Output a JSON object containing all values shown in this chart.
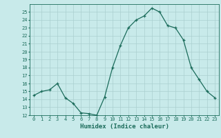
{
  "x": [
    0,
    1,
    2,
    3,
    4,
    5,
    6,
    7,
    8,
    9,
    10,
    11,
    12,
    13,
    14,
    15,
    16,
    17,
    18,
    19,
    20,
    21,
    22,
    23
  ],
  "y": [
    14.5,
    15.0,
    15.2,
    16.0,
    14.2,
    13.5,
    12.3,
    12.2,
    12.0,
    14.3,
    18.0,
    20.8,
    23.0,
    24.0,
    24.5,
    25.5,
    25.0,
    23.3,
    23.0,
    21.5,
    18.0,
    16.5,
    15.0,
    14.2
  ],
  "xlabel": "Humidex (Indice chaleur)",
  "xlim": [
    -0.5,
    23.5
  ],
  "ylim": [
    12,
    26
  ],
  "yticks": [
    12,
    13,
    14,
    15,
    16,
    17,
    18,
    19,
    20,
    21,
    22,
    23,
    24,
    25
  ],
  "xticks": [
    0,
    1,
    2,
    3,
    4,
    5,
    6,
    7,
    8,
    9,
    10,
    11,
    12,
    13,
    14,
    15,
    16,
    17,
    18,
    19,
    20,
    21,
    22,
    23
  ],
  "line_color": "#1a6b5a",
  "marker_color": "#1a6b5a",
  "bg_color": "#c8eaea",
  "grid_color": "#aacfcf",
  "tick_label_color": "#1a6b5a",
  "xlabel_color": "#1a6b5a",
  "font_family": "monospace"
}
